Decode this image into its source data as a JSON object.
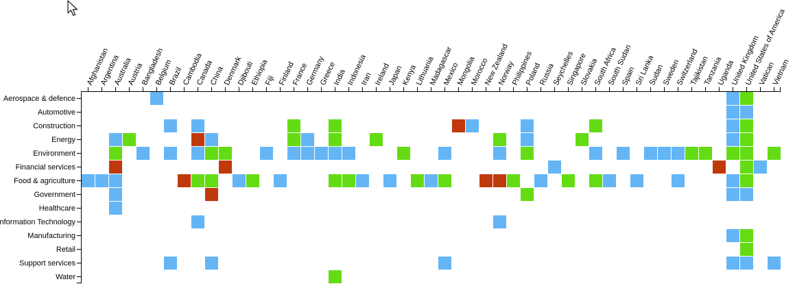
{
  "colors": {
    "blue": "#64b5f6",
    "green": "#64dc14",
    "red": "#c0390b"
  },
  "cursor_icon": "mouse-pointer-icon",
  "chart_data": {
    "type": "heatmap",
    "title": "",
    "xlabel": "",
    "ylabel": "",
    "x_categories": [
      "Afghanistan",
      "Argentina",
      "Australia",
      "Austria",
      "Bangladesh",
      "Belgium",
      "Brazil",
      "Cambodia",
      "Canada",
      "China",
      "Denmark",
      "Djibouti",
      "Ethiopia",
      "Fiji",
      "Finland",
      "France",
      "Germany",
      "Greece",
      "India",
      "Indonesia",
      "Iran",
      "Ireland",
      "Japan",
      "Kenya",
      "Lithuania",
      "Madagascar",
      "Mexico",
      "Mongolia",
      "Morocco",
      "New Zealand",
      "Norway",
      "Philippines",
      "Poland",
      "Russia",
      "Seychelles",
      "Singapore",
      "Slovakia",
      "South Africa",
      "South Sudan",
      "Spain",
      "Sri Lanka",
      "Sudan",
      "Sweden",
      "Switzerland",
      "Tajikistan",
      "Tanzania",
      "Uganda",
      "United Kingdom",
      "United States of America",
      "Vatican",
      "Vietnam"
    ],
    "y_categories": [
      "Aerospace & defence",
      "Automotive",
      "Construction",
      "Energy",
      "Environment",
      "Financial services",
      "Food & agriculture",
      "Government",
      "Healthcare",
      "Information Technology",
      "Manufacturing",
      "Retail",
      "Support services",
      "Water"
    ],
    "cells": [
      {
        "y": "Aerospace & defence",
        "x": "Belgium",
        "c": "blue"
      },
      {
        "y": "Aerospace & defence",
        "x": "United Kingdom",
        "c": "blue"
      },
      {
        "y": "Aerospace & defence",
        "x": "United States of America",
        "c": "green"
      },
      {
        "y": "Automotive",
        "x": "United Kingdom",
        "c": "blue"
      },
      {
        "y": "Automotive",
        "x": "United States of America",
        "c": "blue"
      },
      {
        "y": "Construction",
        "x": "Brazil",
        "c": "blue"
      },
      {
        "y": "Construction",
        "x": "Canada",
        "c": "blue"
      },
      {
        "y": "Construction",
        "x": "France",
        "c": "green"
      },
      {
        "y": "Construction",
        "x": "India",
        "c": "green"
      },
      {
        "y": "Construction",
        "x": "Mongolia",
        "c": "red"
      },
      {
        "y": "Construction",
        "x": "Morocco",
        "c": "blue"
      },
      {
        "y": "Construction",
        "x": "Poland",
        "c": "blue"
      },
      {
        "y": "Construction",
        "x": "South Africa",
        "c": "green"
      },
      {
        "y": "Construction",
        "x": "United Kingdom",
        "c": "blue"
      },
      {
        "y": "Construction",
        "x": "United States of America",
        "c": "green"
      },
      {
        "y": "Energy",
        "x": "Australia",
        "c": "blue"
      },
      {
        "y": "Energy",
        "x": "Austria",
        "c": "green"
      },
      {
        "y": "Energy",
        "x": "Canada",
        "c": "red"
      },
      {
        "y": "Energy",
        "x": "China",
        "c": "blue"
      },
      {
        "y": "Energy",
        "x": "France",
        "c": "green"
      },
      {
        "y": "Energy",
        "x": "Germany",
        "c": "blue"
      },
      {
        "y": "Energy",
        "x": "India",
        "c": "green"
      },
      {
        "y": "Energy",
        "x": "Ireland",
        "c": "green"
      },
      {
        "y": "Energy",
        "x": "Norway",
        "c": "green"
      },
      {
        "y": "Energy",
        "x": "Poland",
        "c": "blue"
      },
      {
        "y": "Energy",
        "x": "Slovakia",
        "c": "green"
      },
      {
        "y": "Energy",
        "x": "United Kingdom",
        "c": "blue"
      },
      {
        "y": "Energy",
        "x": "United States of America",
        "c": "green"
      },
      {
        "y": "Environment",
        "x": "Australia",
        "c": "green"
      },
      {
        "y": "Environment",
        "x": "Bangladesh",
        "c": "blue"
      },
      {
        "y": "Environment",
        "x": "Brazil",
        "c": "blue"
      },
      {
        "y": "Environment",
        "x": "Canada",
        "c": "blue"
      },
      {
        "y": "Environment",
        "x": "China",
        "c": "green"
      },
      {
        "y": "Environment",
        "x": "Denmark",
        "c": "green"
      },
      {
        "y": "Environment",
        "x": "Fiji",
        "c": "blue"
      },
      {
        "y": "Environment",
        "x": "France",
        "c": "blue"
      },
      {
        "y": "Environment",
        "x": "Germany",
        "c": "blue"
      },
      {
        "y": "Environment",
        "x": "Greece",
        "c": "blue"
      },
      {
        "y": "Environment",
        "x": "India",
        "c": "blue"
      },
      {
        "y": "Environment",
        "x": "Indonesia",
        "c": "blue"
      },
      {
        "y": "Environment",
        "x": "Kenya",
        "c": "green"
      },
      {
        "y": "Environment",
        "x": "Mexico",
        "c": "blue"
      },
      {
        "y": "Environment",
        "x": "Norway",
        "c": "blue"
      },
      {
        "y": "Environment",
        "x": "Poland",
        "c": "green"
      },
      {
        "y": "Environment",
        "x": "South Africa",
        "c": "blue"
      },
      {
        "y": "Environment",
        "x": "Spain",
        "c": "blue"
      },
      {
        "y": "Environment",
        "x": "Sudan",
        "c": "blue"
      },
      {
        "y": "Environment",
        "x": "Sweden",
        "c": "blue"
      },
      {
        "y": "Environment",
        "x": "Switzerland",
        "c": "blue"
      },
      {
        "y": "Environment",
        "x": "Tajikistan",
        "c": "green"
      },
      {
        "y": "Environment",
        "x": "Tanzania",
        "c": "green"
      },
      {
        "y": "Environment",
        "x": "United Kingdom",
        "c": "green"
      },
      {
        "y": "Environment",
        "x": "United States of America",
        "c": "green"
      },
      {
        "y": "Environment",
        "x": "Vietnam",
        "c": "green"
      },
      {
        "y": "Financial services",
        "x": "Australia",
        "c": "red"
      },
      {
        "y": "Financial services",
        "x": "Denmark",
        "c": "red"
      },
      {
        "y": "Financial services",
        "x": "Seychelles",
        "c": "blue"
      },
      {
        "y": "Financial services",
        "x": "Uganda",
        "c": "red"
      },
      {
        "y": "Financial services",
        "x": "United States of America",
        "c": "green"
      },
      {
        "y": "Financial services",
        "x": "Vatican",
        "c": "blue"
      },
      {
        "y": "Food & agriculture",
        "x": "Afghanistan",
        "c": "blue"
      },
      {
        "y": "Food & agriculture",
        "x": "Argentina",
        "c": "blue"
      },
      {
        "y": "Food & agriculture",
        "x": "Australia",
        "c": "blue"
      },
      {
        "y": "Food & agriculture",
        "x": "Cambodia",
        "c": "red"
      },
      {
        "y": "Food & agriculture",
        "x": "Canada",
        "c": "green"
      },
      {
        "y": "Food & agriculture",
        "x": "China",
        "c": "green"
      },
      {
        "y": "Food & agriculture",
        "x": "Djibouti",
        "c": "blue"
      },
      {
        "y": "Food & agriculture",
        "x": "Ethiopia",
        "c": "green"
      },
      {
        "y": "Food & agriculture",
        "x": "Finland",
        "c": "blue"
      },
      {
        "y": "Food & agriculture",
        "x": "India",
        "c": "green"
      },
      {
        "y": "Food & agriculture",
        "x": "Indonesia",
        "c": "green"
      },
      {
        "y": "Food & agriculture",
        "x": "Iran",
        "c": "blue"
      },
      {
        "y": "Food & agriculture",
        "x": "Japan",
        "c": "blue"
      },
      {
        "y": "Food & agriculture",
        "x": "Lithuania",
        "c": "green"
      },
      {
        "y": "Food & agriculture",
        "x": "Madagascar",
        "c": "blue"
      },
      {
        "y": "Food & agriculture",
        "x": "Mexico",
        "c": "green"
      },
      {
        "y": "Food & agriculture",
        "x": "New Zealand",
        "c": "red"
      },
      {
        "y": "Food & agriculture",
        "x": "Norway",
        "c": "red"
      },
      {
        "y": "Food & agriculture",
        "x": "Philippines",
        "c": "green"
      },
      {
        "y": "Food & agriculture",
        "x": "Russia",
        "c": "blue"
      },
      {
        "y": "Food & agriculture",
        "x": "Singapore",
        "c": "green"
      },
      {
        "y": "Food & agriculture",
        "x": "South Africa",
        "c": "green"
      },
      {
        "y": "Food & agriculture",
        "x": "South Sudan",
        "c": "blue"
      },
      {
        "y": "Food & agriculture",
        "x": "Sri Lanka",
        "c": "blue"
      },
      {
        "y": "Food & agriculture",
        "x": "Switzerland",
        "c": "blue"
      },
      {
        "y": "Food & agriculture",
        "x": "United Kingdom",
        "c": "blue"
      },
      {
        "y": "Food & agriculture",
        "x": "United States of America",
        "c": "green"
      },
      {
        "y": "Government",
        "x": "Australia",
        "c": "blue"
      },
      {
        "y": "Government",
        "x": "China",
        "c": "red"
      },
      {
        "y": "Government",
        "x": "Poland",
        "c": "green"
      },
      {
        "y": "Government",
        "x": "United Kingdom",
        "c": "blue"
      },
      {
        "y": "Government",
        "x": "United States of America",
        "c": "blue"
      },
      {
        "y": "Healthcare",
        "x": "Australia",
        "c": "blue"
      },
      {
        "y": "Information Technology",
        "x": "Canada",
        "c": "blue"
      },
      {
        "y": "Information Technology",
        "x": "Norway",
        "c": "blue"
      },
      {
        "y": "Manufacturing",
        "x": "United Kingdom",
        "c": "blue"
      },
      {
        "y": "Manufacturing",
        "x": "United States of America",
        "c": "green"
      },
      {
        "y": "Retail",
        "x": "United States of America",
        "c": "green"
      },
      {
        "y": "Support services",
        "x": "Brazil",
        "c": "blue"
      },
      {
        "y": "Support services",
        "x": "China",
        "c": "blue"
      },
      {
        "y": "Support services",
        "x": "Mexico",
        "c": "blue"
      },
      {
        "y": "Support services",
        "x": "United Kingdom",
        "c": "blue"
      },
      {
        "y": "Support services",
        "x": "United States of America",
        "c": "blue"
      },
      {
        "y": "Support services",
        "x": "Vietnam",
        "c": "blue"
      },
      {
        "y": "Water",
        "x": "India",
        "c": "green"
      }
    ]
  }
}
